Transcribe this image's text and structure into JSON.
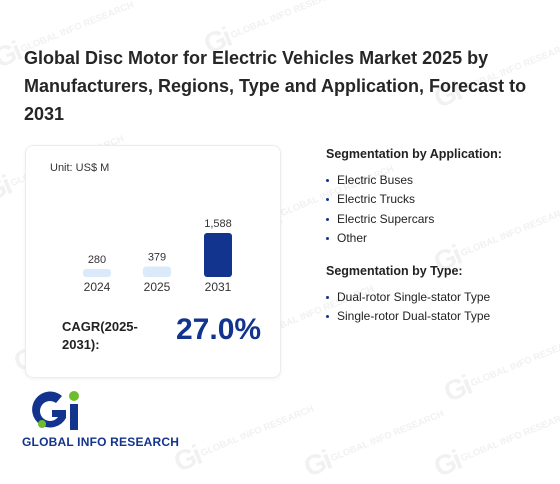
{
  "page": {
    "title": "Global Disc Motor for Electric Vehicles Market 2025 by Manufacturers, Regions, Type and Application, Forecast to 2031"
  },
  "watermark": {
    "text": "GLOBAL INFO RESEARCH"
  },
  "chart_card": {
    "unit": "Unit: US$ M",
    "cagr_label": "CAGR(2025-2031):",
    "cagr_value": "27.0%"
  },
  "chart_data": {
    "type": "bar",
    "categories": [
      "2024",
      "2025",
      "2031"
    ],
    "values": [
      280,
      379,
      1588
    ],
    "value_labels": [
      "280",
      "379",
      "1,588"
    ],
    "bar_colors": [
      "#dbeafb",
      "#dbeafb",
      "#13348e"
    ],
    "ylim": [
      0,
      1588
    ],
    "grid": false,
    "title": "",
    "xlabel": "",
    "ylabel": ""
  },
  "segmentation_application": {
    "title": "Segmentation by Application:",
    "items": [
      "Electric Buses",
      "Electric Trucks",
      "Electric Supercars",
      "Other"
    ]
  },
  "segmentation_type": {
    "title": "Segmentation by Type:",
    "items": [
      "Dual-rotor Single-stator Type",
      "Single-rotor Dual-stator Type"
    ]
  },
  "logo": {
    "mark": "Gi",
    "text": "GLOBAL INFO RESEARCH",
    "colors": {
      "primary": "#13348e",
      "accent": "#6cbf2a"
    }
  }
}
